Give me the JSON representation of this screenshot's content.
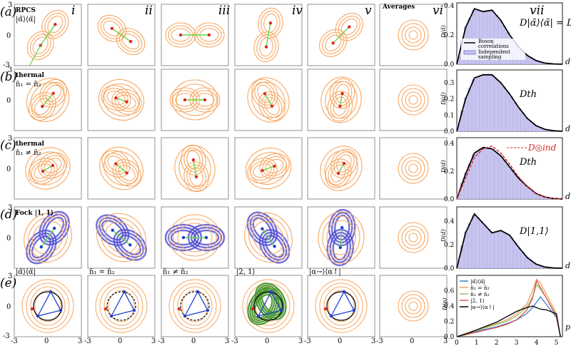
{
  "columns": [
    {
      "label": "i"
    },
    {
      "label": "ii"
    },
    {
      "label": "iii"
    },
    {
      "label": "iv"
    },
    {
      "label": "v"
    },
    {
      "label": "vi"
    },
    {
      "label": "vii"
    }
  ],
  "column_vi_title": "Averages",
  "rows": [
    {
      "label": "(a)",
      "title": "RPCS",
      "subtitle": "|α̃⟩⟨α̃|",
      "y_tick_top": "3",
      "y_tick_mid": "0",
      "y_tick_bot": "-3"
    },
    {
      "label": "(b)",
      "title": "thermal",
      "subtitle": "n̄₁ = n̄₂",
      "y_tick_top": "3",
      "y_tick_mid": "0",
      "y_tick_bot": ""
    },
    {
      "label": "(c)",
      "title": "thermal",
      "subtitle": "n̄₁ ≠ n̄₂",
      "y_tick_top": "3",
      "y_tick_mid": "0",
      "y_tick_bot": ""
    },
    {
      "label": "(d)",
      "title": "Fock |1, 1⟩",
      "subtitle": "",
      "y_tick_top": "3",
      "y_tick_mid": "0",
      "y_tick_bot": ""
    },
    {
      "label": "(e)",
      "title": "",
      "subtitle": "",
      "y_tick_top": "3",
      "y_tick_mid": "0",
      "y_tick_bot": "-3"
    }
  ],
  "row_e_panel_titles": [
    "|α̃⟩⟨α̃|",
    "n̄₁ = n̄₂",
    "n̄₁ ≠ n̄₂",
    "|2, 1⟩",
    "|α→⟩⟨α↑|"
  ],
  "x_ticks": [
    "-3",
    "0",
    "3"
  ],
  "colors": {
    "contour": "#f7a864",
    "fill": "#c7c4f0",
    "fill_edge": "#9d99df",
    "curve": "#000000",
    "independent_dashed": "#d62728",
    "vector_green": "#62d842",
    "vector_red": "#e0261f",
    "vector_blue": "#1d3fc9",
    "fock_purple": "#4f4bd0",
    "fock_green": "#4c9a35"
  },
  "chart_data": [
    {
      "type": "area",
      "panel": "(a) vii",
      "ylabel": "D(d)",
      "xlabel": "d",
      "label": "D|α̃⟩⟨α̃| = D°°ind",
      "y_ticks": [
        "0.0",
        "0.2",
        "0.4"
      ],
      "ylim": [
        0,
        0.42
      ],
      "x": [
        0,
        0.5,
        1.0,
        1.5,
        2.0,
        2.5,
        3.0,
        3.5,
        4.0,
        4.5,
        5.0,
        5.5,
        6.0
      ],
      "series": [
        {
          "name": "Boson correlations",
          "values": [
            0.0,
            0.25,
            0.38,
            0.36,
            0.37,
            0.3,
            0.2,
            0.12,
            0.06,
            0.025,
            0.008,
            0.002,
            0.0
          ]
        },
        {
          "name": "Independent sampling",
          "values": [
            0.0,
            0.25,
            0.38,
            0.36,
            0.37,
            0.3,
            0.2,
            0.12,
            0.06,
            0.025,
            0.008,
            0.002,
            0.0
          ]
        }
      ],
      "legend": "center-left"
    },
    {
      "type": "area",
      "panel": "(b) vii",
      "ylabel": "D(d)",
      "xlabel": "d",
      "label": "Dth",
      "y_ticks": [
        "0.0",
        "0.1",
        "0.2",
        "0.3"
      ],
      "ylim": [
        0,
        0.38
      ],
      "x": [
        0,
        0.5,
        1.0,
        1.5,
        2.0,
        2.5,
        3.0,
        3.5,
        4.0,
        4.5,
        5.0,
        5.5,
        6.0
      ],
      "series": [
        {
          "name": "",
          "values": [
            0.0,
            0.2,
            0.33,
            0.35,
            0.35,
            0.3,
            0.23,
            0.15,
            0.08,
            0.035,
            0.012,
            0.003,
            0.0
          ]
        }
      ]
    },
    {
      "type": "area",
      "panel": "(c) vii",
      "ylabel": "D(d)",
      "xlabel": "d",
      "label": "Dth",
      "annotation": "D◎ind",
      "y_ticks": [
        "0.0",
        "0.2",
        "0.4"
      ],
      "ylim": [
        0,
        0.44
      ],
      "x": [
        0,
        0.5,
        1.0,
        1.5,
        2.0,
        2.5,
        3.0,
        3.5,
        4.0,
        4.5,
        5.0,
        5.5,
        6.0
      ],
      "series": [
        {
          "name": "",
          "values": [
            0.0,
            0.18,
            0.33,
            0.37,
            0.36,
            0.31,
            0.23,
            0.15,
            0.09,
            0.04,
            0.015,
            0.004,
            0.0
          ]
        },
        {
          "name": "",
          "values": [
            0.0,
            0.15,
            0.3,
            0.36,
            0.38,
            0.33,
            0.25,
            0.16,
            0.09,
            0.04,
            0.015,
            0.004,
            0.0
          ]
        }
      ]
    },
    {
      "type": "area",
      "panel": "(d) vii",
      "ylabel": "D(d)",
      "xlabel": "d",
      "label": "D|1,1⟩",
      "y_ticks": [
        "0.0",
        "0.2",
        "0.4"
      ],
      "ylim": [
        0,
        0.52
      ],
      "x": [
        0,
        0.5,
        1.0,
        1.5,
        2.0,
        2.5,
        3.0,
        3.5,
        4.0,
        4.5,
        5.0,
        5.5,
        6.0
      ],
      "series": [
        {
          "name": "",
          "values": [
            0.0,
            0.3,
            0.46,
            0.38,
            0.3,
            0.32,
            0.28,
            0.18,
            0.09,
            0.035,
            0.01,
            0.002,
            0.0
          ]
        }
      ]
    },
    {
      "type": "line",
      "panel": "(e) vii",
      "ylabel": "D(p)",
      "xlabel": "p",
      "x_ticks": [
        "0",
        "1",
        "2",
        "3",
        "4",
        "5"
      ],
      "y_ticks": [
        "0.0",
        "0.2",
        "0.4",
        "0.6"
      ],
      "xlim": [
        0,
        5.3
      ],
      "ylim": [
        0,
        0.8
      ],
      "x": [
        0,
        0.5,
        1.0,
        1.5,
        2.0,
        2.5,
        3.0,
        3.5,
        3.8,
        4.0,
        4.2,
        4.5,
        5.0,
        5.2
      ],
      "series": [
        {
          "name": "|α̃⟩⟨α̃|",
          "color": "#3b7dd8",
          "values": [
            0.0,
            0.04,
            0.07,
            0.1,
            0.13,
            0.17,
            0.22,
            0.3,
            0.38,
            0.45,
            0.52,
            0.42,
            0.25,
            0.0
          ]
        },
        {
          "name": "n̄₁ = n̄₂",
          "color": "#f0a060",
          "values": [
            0.0,
            0.05,
            0.09,
            0.13,
            0.17,
            0.22,
            0.3,
            0.42,
            0.6,
            0.75,
            0.7,
            0.55,
            0.3,
            0.0
          ]
        },
        {
          "name": "n̄₁ ≠ n̄₂",
          "color": "#8fc46b",
          "values": [
            0.0,
            0.05,
            0.08,
            0.12,
            0.16,
            0.2,
            0.27,
            0.38,
            0.52,
            0.68,
            0.62,
            0.5,
            0.28,
            0.0
          ]
        },
        {
          "name": "|2, 1⟩",
          "color": "#e0524d",
          "values": [
            0.0,
            0.03,
            0.06,
            0.09,
            0.12,
            0.16,
            0.22,
            0.34,
            0.5,
            0.73,
            0.64,
            0.5,
            0.26,
            0.0
          ]
        },
        {
          "name": "|α→⟩⟨α↑|",
          "color": "#000000",
          "values": [
            0.0,
            0.04,
            0.09,
            0.14,
            0.19,
            0.26,
            0.33,
            0.38,
            0.4,
            0.38,
            0.36,
            0.35,
            0.3,
            0.0
          ]
        }
      ],
      "legend": "top-left"
    }
  ],
  "legend_a": {
    "item1": "Boson",
    "item1b": "correlations",
    "item2": "Independent",
    "item2b": "sampling"
  }
}
